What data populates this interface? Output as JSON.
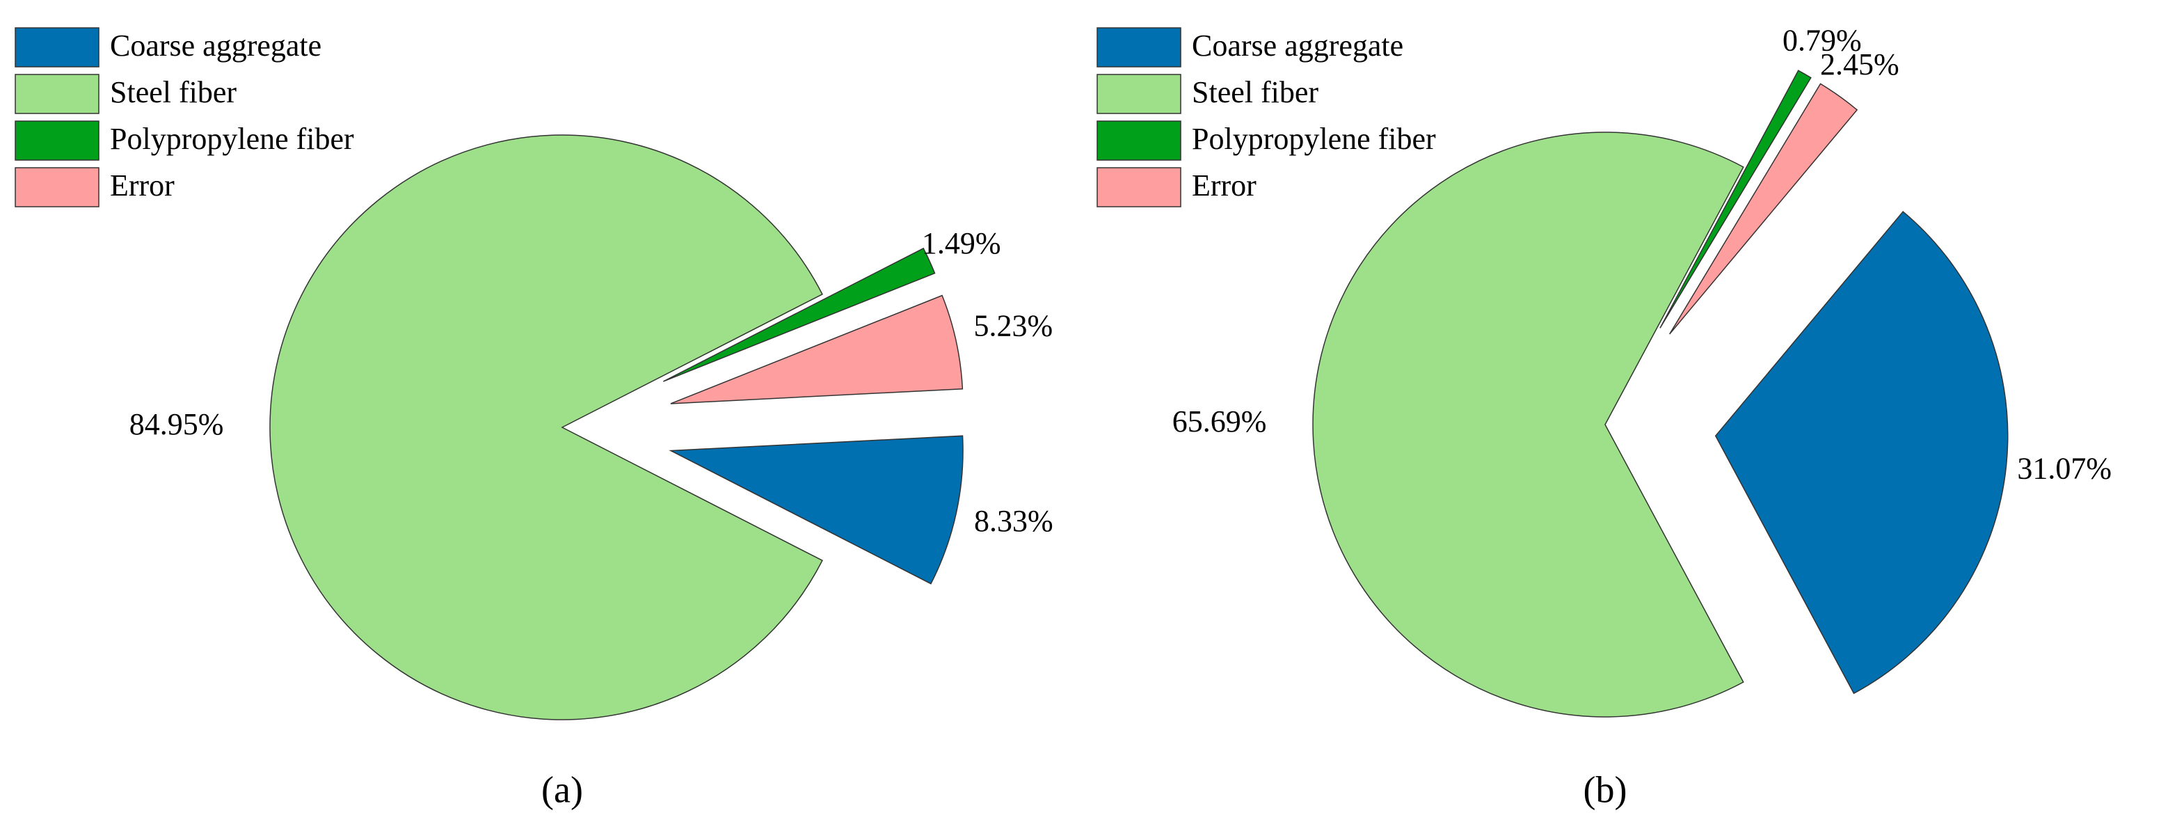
{
  "chart_data": [
    {
      "type": "pie",
      "title": "(a)",
      "categories": [
        "Coarse aggregate",
        "Steel fiber",
        "Polypropylene fiber",
        "Error"
      ],
      "values": [
        8.33,
        84.95,
        1.49,
        5.23
      ],
      "value_labels": [
        "8.33%",
        "84.95%",
        "1.49%",
        "5.23%"
      ],
      "colors": [
        "#0070b0",
        "#9ee08a",
        "#00a01a",
        "#ff9e9e"
      ]
    },
    {
      "type": "pie",
      "title": "(b)",
      "categories": [
        "Coarse aggregate",
        "Steel fiber",
        "Polypropylene fiber",
        "Error"
      ],
      "values": [
        31.07,
        65.69,
        0.79,
        2.45
      ],
      "value_labels": [
        "31.07%",
        "65.69%",
        "0.79%",
        "2.45%"
      ],
      "colors": [
        "#0070b0",
        "#9ee08a",
        "#00a01a",
        "#ff9e9e"
      ]
    }
  ]
}
